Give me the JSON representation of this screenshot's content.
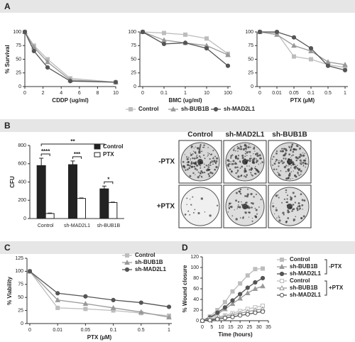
{
  "panels": [
    "A",
    "B",
    "C",
    "D"
  ],
  "colony_panel": {
    "columns": [
      "Control",
      "sh-MAD2L1",
      "sh-BUB1B"
    ],
    "rows": [
      "-PTX",
      "+PTX"
    ]
  },
  "chart_data": [
    {
      "type": "line",
      "ylabel": "% Survival",
      "xlabel": "CDDP (ug/ml)",
      "x": [
        0,
        1,
        2.5,
        5,
        10
      ],
      "xlim": [
        0,
        10
      ],
      "xticks": [
        0,
        2,
        4,
        6,
        8,
        10
      ],
      "ylim": [
        0,
        100
      ],
      "yticks": [
        0,
        25,
        50,
        75,
        100
      ],
      "series": [
        {
          "color": "#bdbdbd",
          "marker": "square",
          "filled": true,
          "values": [
            100,
            75,
            50,
            15,
            8
          ]
        },
        {
          "color": "#999999",
          "marker": "triangle",
          "filled": true,
          "values": [
            100,
            72,
            45,
            12,
            8
          ]
        },
        {
          "color": "#555555",
          "marker": "circle",
          "filled": true,
          "values": [
            100,
            65,
            35,
            10,
            8
          ]
        }
      ]
    },
    {
      "type": "line",
      "xlabel": "BMC (ug/ml)",
      "categories": [
        "0",
        "0.1",
        "1",
        "10",
        "100"
      ],
      "ylim": [
        0,
        100
      ],
      "yticks": [
        0,
        25,
        50,
        75,
        100
      ],
      "legend": "below",
      "series": [
        {
          "name": "Control",
          "color": "#bdbdbd",
          "marker": "square",
          "filled": true,
          "values": [
            100,
            98,
            95,
            88,
            60
          ]
        },
        {
          "name": "sh-BUB1B",
          "color": "#999999",
          "marker": "triangle",
          "filled": true,
          "values": [
            100,
            85,
            80,
            75,
            58
          ]
        },
        {
          "name": "sh-MAD2L1",
          "color": "#555555",
          "marker": "circle",
          "filled": true,
          "values": [
            100,
            78,
            80,
            70,
            38
          ]
        }
      ]
    },
    {
      "type": "line",
      "xlabel": "PTX (µM)",
      "categories": [
        "0",
        "0.01",
        "0.05",
        "0.1",
        "0.5",
        "1"
      ],
      "ylim": [
        0,
        100
      ],
      "yticks": [
        0,
        25,
        50,
        75,
        100
      ],
      "series": [
        {
          "color": "#bdbdbd",
          "marker": "square",
          "filled": true,
          "values": [
            100,
            98,
            55,
            50,
            40,
            35
          ]
        },
        {
          "color": "#999999",
          "marker": "triangle",
          "filled": true,
          "values": [
            100,
            95,
            75,
            65,
            45,
            40
          ]
        },
        {
          "color": "#555555",
          "marker": "circle",
          "filled": true,
          "values": [
            100,
            100,
            90,
            70,
            38,
            30
          ]
        }
      ]
    },
    {
      "type": "bar",
      "ylabel": "CFU",
      "categories": [
        "Control",
        "sh-MAD2L1",
        "sh-BUB1B"
      ],
      "ylim": [
        0,
        800
      ],
      "yticks": [
        0,
        200,
        400,
        600,
        800
      ],
      "legend": "upper right",
      "annotations": [
        "****",
        "***",
        "*",
        "**"
      ],
      "series": [
        {
          "name": "Control",
          "color": "#222222",
          "values": [
            580,
            590,
            325
          ],
          "errors": [
            80,
            40,
            30
          ]
        },
        {
          "name": "PTX",
          "color": "#ffffff",
          "values": [
            55,
            220,
            175
          ],
          "errors": [
            5,
            5,
            5
          ]
        }
      ]
    },
    {
      "type": "line",
      "ylabel": "% Viability",
      "xlabel": "PTX (µM)",
      "categories": [
        "0",
        "0.01",
        "0.05",
        "0.1",
        "0.5",
        "1"
      ],
      "ylim": [
        0,
        125
      ],
      "yticks": [
        0,
        25,
        50,
        75,
        100,
        125
      ],
      "legend": "upper right",
      "series": [
        {
          "name": "Control",
          "color": "#bdbdbd",
          "marker": "square",
          "filled": true,
          "values": [
            100,
            30,
            28,
            25,
            20,
            15
          ]
        },
        {
          "name": "sh-BUB1B",
          "color": "#999999",
          "marker": "triangle",
          "filled": true,
          "values": [
            100,
            45,
            38,
            30,
            22,
            12
          ]
        },
        {
          "name": "sh-MAD2L1",
          "color": "#555555",
          "marker": "circle",
          "filled": true,
          "values": [
            100,
            58,
            52,
            45,
            40,
            32
          ]
        }
      ]
    },
    {
      "type": "line",
      "ylabel": "% Wound closure",
      "xlabel": "Time (hours)",
      "x": [
        0,
        4,
        8,
        12,
        16,
        20,
        24,
        28,
        32
      ],
      "xlim": [
        0,
        35
      ],
      "xticks": [
        0,
        5,
        10,
        15,
        20,
        25,
        30,
        35
      ],
      "ylim": [
        0,
        120
      ],
      "yticks": [
        0,
        20,
        40,
        60,
        80,
        100,
        120
      ],
      "legend": "right",
      "legend_groups": [
        "-PTX",
        "+PTX"
      ],
      "series": [
        {
          "name": "Control",
          "color": "#bdbdbd",
          "marker": "square",
          "filled": true,
          "values": [
            0,
            8,
            20,
            35,
            55,
            70,
            85,
            97,
            98
          ]
        },
        {
          "name": "sh-BUB1B",
          "color": "#999999",
          "marker": "triangle",
          "filled": true,
          "values": [
            0,
            5,
            12,
            22,
            32,
            42,
            52,
            60,
            65
          ]
        },
        {
          "name": "sh-MAD2L1",
          "color": "#555555",
          "marker": "circle",
          "filled": true,
          "values": [
            0,
            6,
            15,
            25,
            38,
            50,
            62,
            72,
            80
          ]
        },
        {
          "name": "Control",
          "color": "#bdbdbd",
          "marker": "square",
          "filled": false,
          "values": [
            0,
            3,
            7,
            10,
            14,
            18,
            22,
            25,
            28
          ]
        },
        {
          "name": "sh-BUB1B",
          "color": "#999999",
          "marker": "triangle",
          "filled": false,
          "values": [
            0,
            2,
            5,
            8,
            11,
            14,
            17,
            20,
            22
          ]
        },
        {
          "name": "sh-MAD2L1",
          "color": "#555555",
          "marker": "circle",
          "filled": false,
          "values": [
            0,
            1,
            3,
            5,
            7,
            10,
            12,
            15,
            17
          ]
        }
      ]
    }
  ]
}
